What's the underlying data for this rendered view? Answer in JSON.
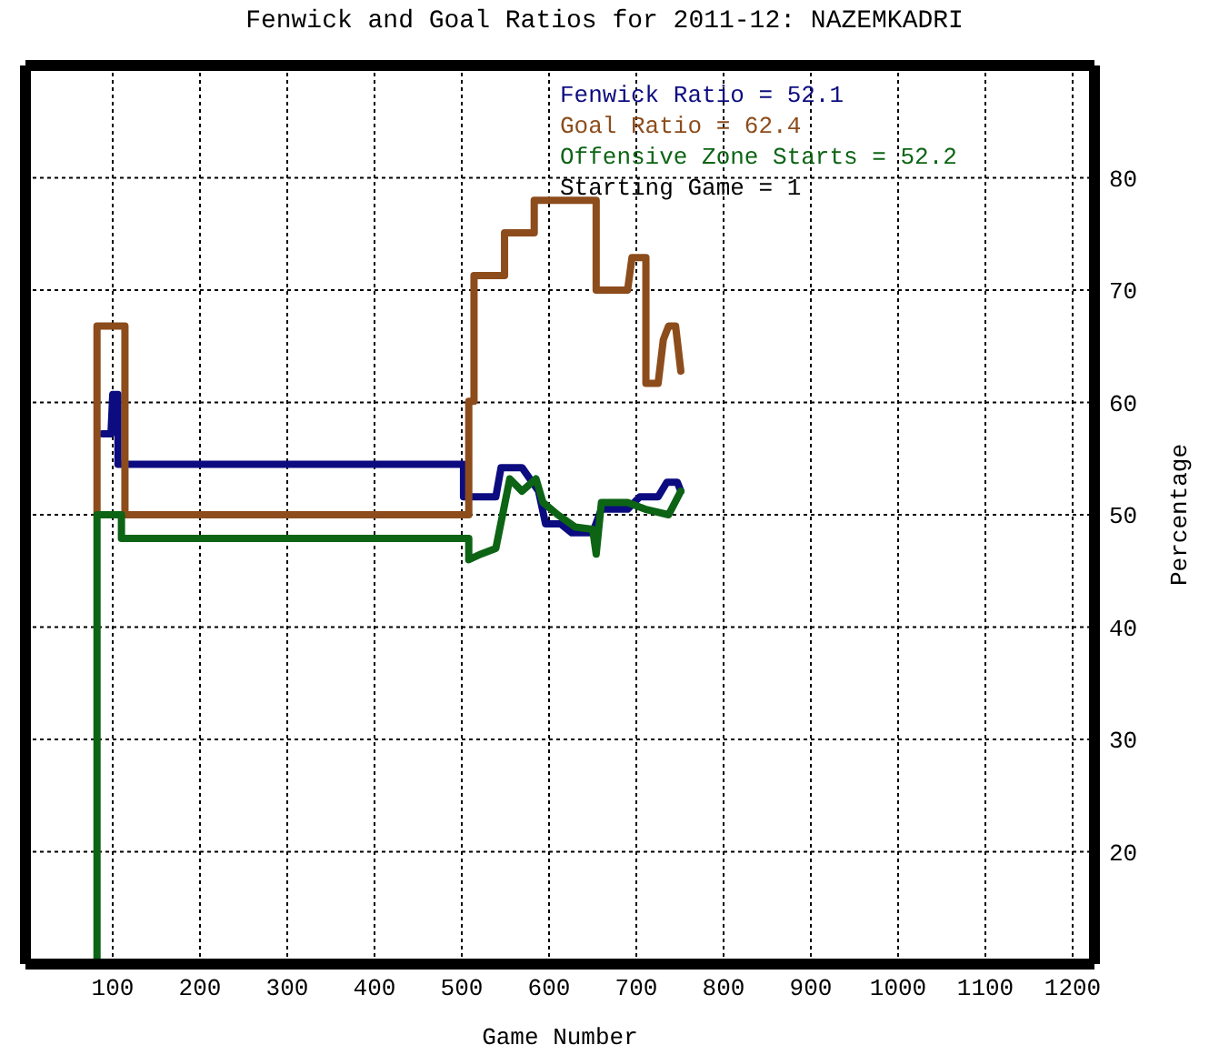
{
  "chart_data": {
    "type": "line",
    "title": "Fenwick and Goal Ratios for 2011-12: NAZEMKADRI",
    "xlabel": "Game Number",
    "ylabel": "Percentage",
    "xlim": [
      0,
      1225
    ],
    "ylim": [
      10,
      90
    ],
    "xticks": [
      100,
      200,
      300,
      400,
      500,
      600,
      700,
      800,
      900,
      1000,
      1100,
      1200
    ],
    "yticks": [
      20,
      30,
      40,
      50,
      60,
      70,
      80
    ],
    "grid": true,
    "legend": "top right",
    "line_style": "solid",
    "marker": "none",
    "annotations": [
      "Starting Game = 1"
    ],
    "series": [
      {
        "name": "Fenwick Ratio = 52.1",
        "color": "#0c0c80",
        "x": [
          88,
          98,
          100,
          106,
          106,
          502,
          502,
          539,
          545,
          569,
          588,
          596,
          613,
          626,
          650,
          660,
          690,
          704,
          725,
          735,
          747,
          751
        ],
        "values": [
          57.2,
          57.2,
          60.7,
          60.7,
          54.5,
          54.5,
          51.6,
          51.6,
          54.2,
          54.2,
          52.1,
          49.2,
          49.2,
          48.4,
          48.4,
          50.5,
          50.5,
          51.6,
          51.6,
          52.9,
          52.9,
          52.1
        ]
      },
      {
        "name": "Goal Ratio = 62.4",
        "color": "#8c4c1c",
        "x": [
          82,
          82,
          114,
          114,
          508,
          508,
          514,
          514,
          549,
          549,
          583,
          583,
          654,
          654,
          690,
          695,
          711,
          711,
          725,
          731,
          737,
          745,
          751
        ],
        "values": [
          50,
          66.8,
          66.8,
          50,
          50,
          60.1,
          60.1,
          71.3,
          71.3,
          75.1,
          75.1,
          78,
          78,
          70,
          70,
          72.9,
          72.9,
          61.7,
          61.7,
          65.6,
          66.8,
          66.8,
          62.8
        ]
      },
      {
        "name": "Offensive Zone Starts = 52.2",
        "color": "#0c6414",
        "x": [
          82,
          82,
          110,
          110,
          508,
          508,
          522,
          539,
          555,
          569,
          585,
          593,
          610,
          630,
          650,
          654,
          660,
          690,
          710,
          737,
          751
        ],
        "values": [
          10,
          50,
          50,
          47.9,
          47.9,
          46,
          46.5,
          47,
          53.2,
          52.1,
          53.2,
          51.1,
          50,
          48.9,
          48.7,
          46.5,
          51.1,
          51.1,
          50.5,
          50,
          52.1
        ]
      }
    ]
  }
}
